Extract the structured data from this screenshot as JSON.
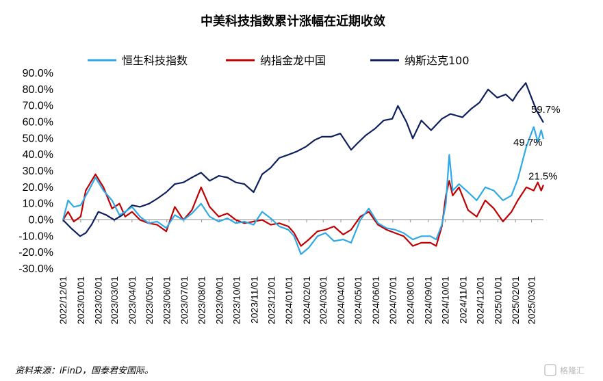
{
  "chart_data": {
    "type": "line",
    "title": "中美科技指数累计涨幅在近期收敛",
    "ylim": [
      -30,
      90
    ],
    "yticks": [
      "90.0%",
      "80.0%",
      "70.0%",
      "60.0%",
      "50.0%",
      "40.0%",
      "30.0%",
      "20.0%",
      "10.0%",
      "0.0%",
      "-10.0%",
      "-20.0%",
      "-30.0%"
    ],
    "x_labels": [
      "2022/12/01",
      "2023/01/01",
      "2023/02/01",
      "2023/03/01",
      "2023/04/01",
      "2023/05/01",
      "2023/06/01",
      "2023/07/01",
      "2023/08/01",
      "2023/09/01",
      "2023/10/01",
      "2023/11/01",
      "2023/12/01",
      "2024/01/01",
      "2024/02/01",
      "2024/03/01",
      "2024/04/01",
      "2024/05/01",
      "2024/06/01",
      "2024/07/01",
      "2024/08/01",
      "2024/09/01",
      "2024/10/01",
      "2024/11/01",
      "2024/12/01",
      "2025/01/01",
      "2025/02/01",
      "2025/03/01"
    ],
    "legend_position": "top",
    "series": [
      {
        "name": "恒生科技指数",
        "color": "#2EA8E6",
        "points": [
          [
            "2022-12-01",
            0
          ],
          [
            "2022-12-10",
            12
          ],
          [
            "2022-12-20",
            8
          ],
          [
            "2023-01-01",
            9
          ],
          [
            "2023-01-15",
            18
          ],
          [
            "2023-01-27",
            26
          ],
          [
            "2023-02-10",
            18
          ],
          [
            "2023-02-25",
            12
          ],
          [
            "2023-03-10",
            3
          ],
          [
            "2023-03-20",
            5
          ],
          [
            "2023-04-01",
            8
          ],
          [
            "2023-04-15",
            2
          ],
          [
            "2023-04-30",
            -2
          ],
          [
            "2023-05-15",
            -1
          ],
          [
            "2023-05-31",
            -5
          ],
          [
            "2023-06-15",
            3
          ],
          [
            "2023-06-30",
            0
          ],
          [
            "2023-07-15",
            4
          ],
          [
            "2023-07-31",
            10
          ],
          [
            "2023-08-15",
            2
          ],
          [
            "2023-08-31",
            -1
          ],
          [
            "2023-09-15",
            1
          ],
          [
            "2023-09-30",
            -2
          ],
          [
            "2023-10-15",
            -1
          ],
          [
            "2023-10-31",
            -3
          ],
          [
            "2023-11-15",
            5
          ],
          [
            "2023-11-30",
            1
          ],
          [
            "2023-12-15",
            -4
          ],
          [
            "2023-12-31",
            -6
          ],
          [
            "2024-01-10",
            -10
          ],
          [
            "2024-01-22",
            -21
          ],
          [
            "2024-02-05",
            -17
          ],
          [
            "2024-02-20",
            -10
          ],
          [
            "2024-03-05",
            -8
          ],
          [
            "2024-03-20",
            -13
          ],
          [
            "2024-04-05",
            -12
          ],
          [
            "2024-04-19",
            -14
          ],
          [
            "2024-05-05",
            0
          ],
          [
            "2024-05-20",
            7
          ],
          [
            "2024-06-05",
            -2
          ],
          [
            "2024-06-20",
            -5
          ],
          [
            "2024-07-05",
            -6
          ],
          [
            "2024-07-20",
            -8
          ],
          [
            "2024-08-05",
            -12
          ],
          [
            "2024-08-20",
            -10
          ],
          [
            "2024-09-05",
            -10
          ],
          [
            "2024-09-15",
            -12
          ],
          [
            "2024-09-25",
            -3
          ],
          [
            "2024-10-02",
            10
          ],
          [
            "2024-10-08",
            40
          ],
          [
            "2024-10-14",
            18
          ],
          [
            "2024-10-25",
            22
          ],
          [
            "2024-11-10",
            17
          ],
          [
            "2024-11-25",
            12
          ],
          [
            "2024-12-10",
            20
          ],
          [
            "2024-12-25",
            18
          ],
          [
            "2025-01-10",
            12
          ],
          [
            "2025-01-25",
            15
          ],
          [
            "2025-02-05",
            25
          ],
          [
            "2025-02-20",
            45
          ],
          [
            "2025-03-05",
            57
          ],
          [
            "2025-03-12",
            48
          ],
          [
            "2025-03-18",
            55
          ],
          [
            "2025-03-22",
            49.7
          ]
        ],
        "end_label": "49.7%"
      },
      {
        "name": "纳指金龙中国",
        "color": "#C00000",
        "points": [
          [
            "2022-12-01",
            0
          ],
          [
            "2022-12-10",
            5
          ],
          [
            "2022-12-20",
            -1
          ],
          [
            "2023-01-01",
            2
          ],
          [
            "2023-01-10",
            18
          ],
          [
            "2023-01-27",
            28
          ],
          [
            "2023-02-10",
            20
          ],
          [
            "2023-02-25",
            7
          ],
          [
            "2023-03-10",
            10
          ],
          [
            "2023-03-20",
            2
          ],
          [
            "2023-04-01",
            5
          ],
          [
            "2023-04-15",
            0
          ],
          [
            "2023-04-30",
            -2
          ],
          [
            "2023-05-15",
            -3
          ],
          [
            "2023-05-31",
            -7
          ],
          [
            "2023-06-15",
            8
          ],
          [
            "2023-06-30",
            0
          ],
          [
            "2023-07-15",
            6
          ],
          [
            "2023-07-31",
            20
          ],
          [
            "2023-08-15",
            8
          ],
          [
            "2023-08-31",
            2
          ],
          [
            "2023-09-15",
            4
          ],
          [
            "2023-09-30",
            0
          ],
          [
            "2023-10-15",
            -2
          ],
          [
            "2023-10-31",
            -1
          ],
          [
            "2023-11-15",
            0
          ],
          [
            "2023-11-30",
            -3
          ],
          [
            "2023-12-15",
            -2
          ],
          [
            "2023-12-31",
            -4
          ],
          [
            "2024-01-10",
            -8
          ],
          [
            "2024-01-22",
            -16
          ],
          [
            "2024-02-05",
            -12
          ],
          [
            "2024-02-20",
            -7
          ],
          [
            "2024-03-05",
            -6
          ],
          [
            "2024-03-20",
            -4
          ],
          [
            "2024-04-05",
            -9
          ],
          [
            "2024-04-19",
            -6
          ],
          [
            "2024-05-05",
            2
          ],
          [
            "2024-05-20",
            5
          ],
          [
            "2024-06-05",
            -3
          ],
          [
            "2024-06-20",
            -6
          ],
          [
            "2024-07-05",
            -8
          ],
          [
            "2024-07-20",
            -10
          ],
          [
            "2024-08-05",
            -16
          ],
          [
            "2024-08-20",
            -14
          ],
          [
            "2024-09-05",
            -14
          ],
          [
            "2024-09-15",
            -16
          ],
          [
            "2024-09-25",
            -4
          ],
          [
            "2024-10-02",
            15
          ],
          [
            "2024-10-08",
            24
          ],
          [
            "2024-10-14",
            15
          ],
          [
            "2024-10-25",
            20
          ],
          [
            "2024-11-10",
            6
          ],
          [
            "2024-11-25",
            2
          ],
          [
            "2024-12-10",
            12
          ],
          [
            "2024-12-25",
            7
          ],
          [
            "2025-01-10",
            -1
          ],
          [
            "2025-01-25",
            5
          ],
          [
            "2025-02-05",
            12
          ],
          [
            "2025-02-20",
            20
          ],
          [
            "2025-03-05",
            18
          ],
          [
            "2025-03-12",
            23
          ],
          [
            "2025-03-18",
            18
          ],
          [
            "2025-03-22",
            21.5
          ]
        ],
        "end_label": "21.5%"
      },
      {
        "name": "纳斯达克100",
        "color": "#0D1F5C",
        "points": [
          [
            "2022-12-01",
            0
          ],
          [
            "2022-12-15",
            -5
          ],
          [
            "2022-12-31",
            -10
          ],
          [
            "2023-01-10",
            -8
          ],
          [
            "2023-01-20",
            -3
          ],
          [
            "2023-02-01",
            5
          ],
          [
            "2023-02-15",
            3
          ],
          [
            "2023-03-01",
            0
          ],
          [
            "2023-03-15",
            3
          ],
          [
            "2023-04-01",
            9
          ],
          [
            "2023-04-15",
            8
          ],
          [
            "2023-05-01",
            10
          ],
          [
            "2023-05-15",
            13
          ],
          [
            "2023-05-31",
            17
          ],
          [
            "2023-06-15",
            22
          ],
          [
            "2023-06-30",
            23
          ],
          [
            "2023-07-15",
            26
          ],
          [
            "2023-07-31",
            29
          ],
          [
            "2023-08-15",
            24
          ],
          [
            "2023-08-31",
            27
          ],
          [
            "2023-09-15",
            26
          ],
          [
            "2023-09-30",
            23
          ],
          [
            "2023-10-15",
            22
          ],
          [
            "2023-10-31",
            17
          ],
          [
            "2023-11-15",
            28
          ],
          [
            "2023-11-30",
            32
          ],
          [
            "2023-12-15",
            38
          ],
          [
            "2023-12-31",
            40
          ],
          [
            "2024-01-15",
            42
          ],
          [
            "2024-01-31",
            45
          ],
          [
            "2024-02-15",
            49
          ],
          [
            "2024-02-28",
            51
          ],
          [
            "2024-03-15",
            51
          ],
          [
            "2024-03-31",
            53
          ],
          [
            "2024-04-19",
            43
          ],
          [
            "2024-04-30",
            47
          ],
          [
            "2024-05-15",
            52
          ],
          [
            "2024-05-31",
            56
          ],
          [
            "2024-06-15",
            61
          ],
          [
            "2024-06-30",
            62
          ],
          [
            "2024-07-10",
            70
          ],
          [
            "2024-07-25",
            60
          ],
          [
            "2024-08-05",
            50
          ],
          [
            "2024-08-20",
            61
          ],
          [
            "2024-09-06",
            55
          ],
          [
            "2024-09-25",
            62
          ],
          [
            "2024-10-10",
            65
          ],
          [
            "2024-10-31",
            63
          ],
          [
            "2024-11-15",
            68
          ],
          [
            "2024-11-30",
            72
          ],
          [
            "2024-12-15",
            80
          ],
          [
            "2024-12-31",
            75
          ],
          [
            "2025-01-15",
            77
          ],
          [
            "2025-01-27",
            73
          ],
          [
            "2025-02-05",
            78
          ],
          [
            "2025-02-19",
            84
          ],
          [
            "2025-03-01",
            75
          ],
          [
            "2025-03-10",
            67
          ],
          [
            "2025-03-22",
            59.7
          ]
        ],
        "end_label": "59.7%"
      }
    ]
  },
  "source": "资料来源：iFinD，国泰君安国际。",
  "watermark": "格隆汇"
}
